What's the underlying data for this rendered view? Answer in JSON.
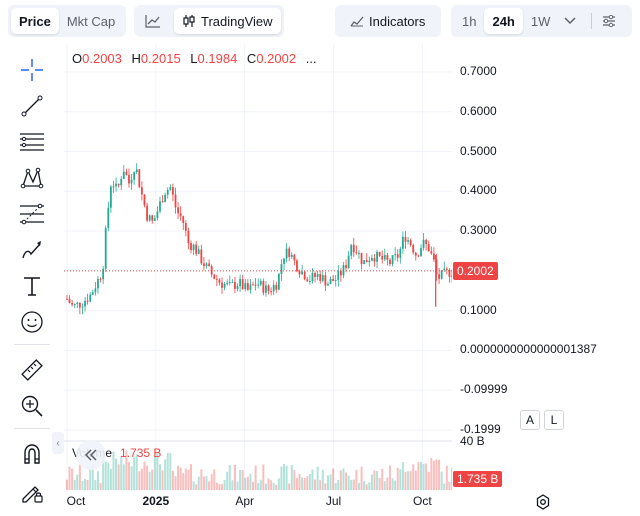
{
  "toolbar": {
    "metric_options": [
      {
        "label": "Price",
        "active": true
      },
      {
        "label": "Mkt Cap",
        "active": false
      }
    ],
    "chart_type_icon": "line-chart-icon",
    "tradingview_label": "TradingView",
    "indicators_label": "Indicators",
    "intervals": [
      {
        "label": "1h",
        "active": false
      },
      {
        "label": "24h",
        "active": true
      },
      {
        "label": "1W",
        "active": false
      }
    ],
    "more_icon": "chevron-down-icon",
    "settings_icon": "sliders-icon"
  },
  "left_tools": [
    {
      "name": "crosshair-icon"
    },
    {
      "name": "trend-line-icon"
    },
    {
      "name": "horizontal-lines-icon"
    },
    {
      "name": "pattern-icon"
    },
    {
      "name": "fib-retracement-icon"
    },
    {
      "name": "brush-icon"
    },
    {
      "name": "text-icon"
    },
    {
      "name": "emoji-icon"
    },
    {
      "name": "ruler-icon"
    },
    {
      "name": "zoom-in-icon"
    },
    {
      "name": "magnet-icon"
    },
    {
      "name": "lock-draw-icon"
    }
  ],
  "ohlc": {
    "o_label": "O",
    "o": "0.2003",
    "h_label": "H",
    "h": "0.2015",
    "l_label": "L",
    "l": "0.1984",
    "c_label": "C",
    "c": "0.2002",
    "more": "..."
  },
  "volume": {
    "label": "Volume",
    "value": "1.735 B",
    "axis_label": "40 B",
    "tag": "1.735 B"
  },
  "current_price_tag": "0.2002",
  "scale_buttons": {
    "auto": "A",
    "log": "L"
  },
  "colors": {
    "up": "#22ab94",
    "down": "#ef4444",
    "accent": "#2962ff"
  },
  "chart_data": {
    "type": "candlestick",
    "y_ticks": [
      "0.7000",
      "0.6000",
      "0.5000",
      "0.4000",
      "0.3000",
      "0.1000",
      "0.0000000000000001387",
      "-0.09999",
      "-0.1999"
    ],
    "y_tick_values": [
      0.7,
      0.6,
      0.5,
      0.4,
      0.3,
      0.1,
      0,
      -0.1,
      -0.2
    ],
    "ylim": [
      -0.24,
      0.74
    ],
    "x_ticks": [
      {
        "label": "Oct",
        "bold": false
      },
      {
        "label": "2025",
        "bold": true
      },
      {
        "label": "Apr",
        "bold": false
      },
      {
        "label": "Jul",
        "bold": false
      },
      {
        "label": "Oct",
        "bold": false
      }
    ],
    "x_tick_months": [
      0,
      3,
      6,
      9,
      12
    ],
    "x_range_months": [
      -0.1,
      13.0
    ],
    "current_price": 0.2002,
    "price_path": [
      [
        0.0,
        0.13
      ],
      [
        0.2,
        0.11
      ],
      [
        0.5,
        0.12
      ],
      [
        0.8,
        0.14
      ],
      [
        1.0,
        0.17
      ],
      [
        1.2,
        0.2
      ],
      [
        1.35,
        0.33
      ],
      [
        1.5,
        0.43
      ],
      [
        1.7,
        0.4
      ],
      [
        1.9,
        0.46
      ],
      [
        2.1,
        0.42
      ],
      [
        2.3,
        0.47
      ],
      [
        2.5,
        0.4
      ],
      [
        2.7,
        0.34
      ],
      [
        2.9,
        0.32
      ],
      [
        3.1,
        0.36
      ],
      [
        3.3,
        0.4
      ],
      [
        3.5,
        0.41
      ],
      [
        3.7,
        0.35
      ],
      [
        3.9,
        0.33
      ],
      [
        4.1,
        0.27
      ],
      [
        4.3,
        0.26
      ],
      [
        4.6,
        0.22
      ],
      [
        4.9,
        0.19
      ],
      [
        5.2,
        0.17
      ],
      [
        5.5,
        0.16
      ],
      [
        5.8,
        0.17
      ],
      [
        6.1,
        0.15
      ],
      [
        6.4,
        0.17
      ],
      [
        6.8,
        0.15
      ],
      [
        7.1,
        0.17
      ],
      [
        7.3,
        0.24
      ],
      [
        7.5,
        0.25
      ],
      [
        7.7,
        0.22
      ],
      [
        7.9,
        0.2
      ],
      [
        8.2,
        0.18
      ],
      [
        8.5,
        0.19
      ],
      [
        8.8,
        0.17
      ],
      [
        9.1,
        0.18
      ],
      [
        9.4,
        0.21
      ],
      [
        9.6,
        0.27
      ],
      [
        9.8,
        0.25
      ],
      [
        10.0,
        0.22
      ],
      [
        10.3,
        0.24
      ],
      [
        10.6,
        0.23
      ],
      [
        10.9,
        0.22
      ],
      [
        11.2,
        0.24
      ],
      [
        11.4,
        0.29
      ],
      [
        11.6,
        0.27
      ],
      [
        11.8,
        0.24
      ],
      [
        12.0,
        0.27
      ],
      [
        12.2,
        0.26
      ],
      [
        12.4,
        0.22
      ],
      [
        12.5,
        0.18
      ],
      [
        12.7,
        0.19
      ],
      [
        13.0,
        0.2
      ]
    ],
    "volume_axis_max_B": 40
  }
}
